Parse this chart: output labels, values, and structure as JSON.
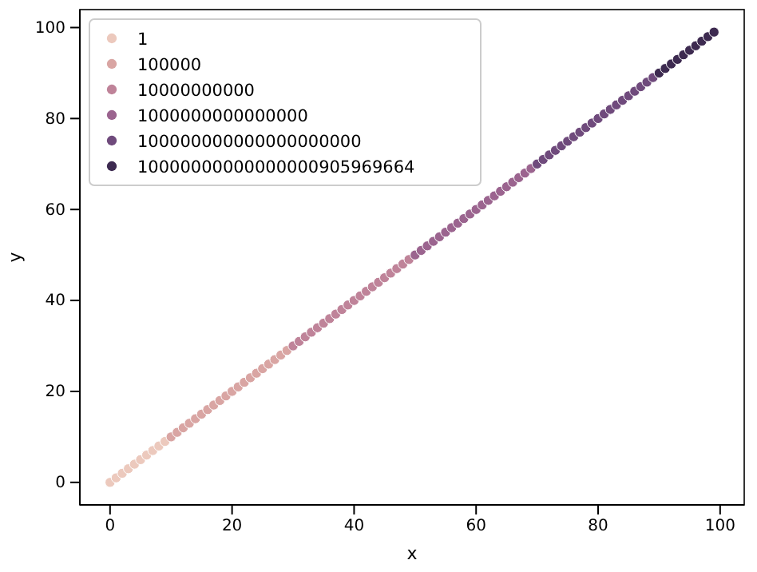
{
  "chart_data": {
    "type": "scatter",
    "xlabel": "x",
    "ylabel": "y",
    "xlim": [
      -4.95,
      103.95
    ],
    "ylim": [
      -4.95,
      103.95
    ],
    "xticks": [
      0,
      20,
      40,
      60,
      80,
      100
    ],
    "yticks": [
      0,
      20,
      40,
      60,
      80,
      100
    ],
    "grid": false,
    "legend": "top left",
    "marker": "circle",
    "series": [
      {
        "name": "1",
        "color": "#ecc9bd",
        "x": [
          0,
          1,
          2,
          3,
          4,
          5,
          6,
          7,
          8,
          9
        ],
        "values": [
          0,
          1,
          2,
          3,
          4,
          5,
          6,
          7,
          8,
          9
        ]
      },
      {
        "name": "100000",
        "color": "#d9a5a3",
        "x": [
          10,
          11,
          12,
          13,
          14,
          15,
          16,
          17,
          18,
          19,
          20,
          21,
          22,
          23,
          24,
          25,
          26,
          27,
          28,
          29
        ],
        "values": [
          10,
          11,
          12,
          13,
          14,
          15,
          16,
          17,
          18,
          19,
          20,
          21,
          22,
          23,
          24,
          25,
          26,
          27,
          28,
          29
        ]
      },
      {
        "name": "10000000000",
        "color": "#bf8399",
        "x": [
          30,
          31,
          32,
          33,
          34,
          35,
          36,
          37,
          38,
          39,
          40,
          41,
          42,
          43,
          44,
          45,
          46,
          47,
          48,
          49
        ],
        "values": [
          30,
          31,
          32,
          33,
          34,
          35,
          36,
          37,
          38,
          39,
          40,
          41,
          42,
          43,
          44,
          45,
          46,
          47,
          48,
          49
        ]
      },
      {
        "name": "1000000000000000",
        "color": "#9b648f",
        "x": [
          50,
          51,
          52,
          53,
          54,
          55,
          56,
          57,
          58,
          59,
          60,
          61,
          62,
          63,
          64,
          65,
          66,
          67,
          68,
          69
        ],
        "values": [
          50,
          51,
          52,
          53,
          54,
          55,
          56,
          57,
          58,
          59,
          60,
          61,
          62,
          63,
          64,
          65,
          66,
          67,
          68,
          69
        ]
      },
      {
        "name": "100000000000000000000",
        "color": "#6f4a7c",
        "x": [
          70,
          71,
          72,
          73,
          74,
          75,
          76,
          77,
          78,
          79,
          80,
          81,
          82,
          83,
          84,
          85,
          86,
          87,
          88,
          89
        ],
        "values": [
          70,
          71,
          72,
          73,
          74,
          75,
          76,
          77,
          78,
          79,
          80,
          81,
          82,
          83,
          84,
          85,
          86,
          87,
          88,
          89
        ]
      },
      {
        "name": "10000000000000000905969664",
        "color": "#3d2a50",
        "x": [
          90,
          91,
          92,
          93,
          94,
          95,
          96,
          97,
          98,
          99
        ],
        "values": [
          90,
          91,
          92,
          93,
          94,
          95,
          96,
          97,
          98,
          99
        ]
      }
    ]
  }
}
